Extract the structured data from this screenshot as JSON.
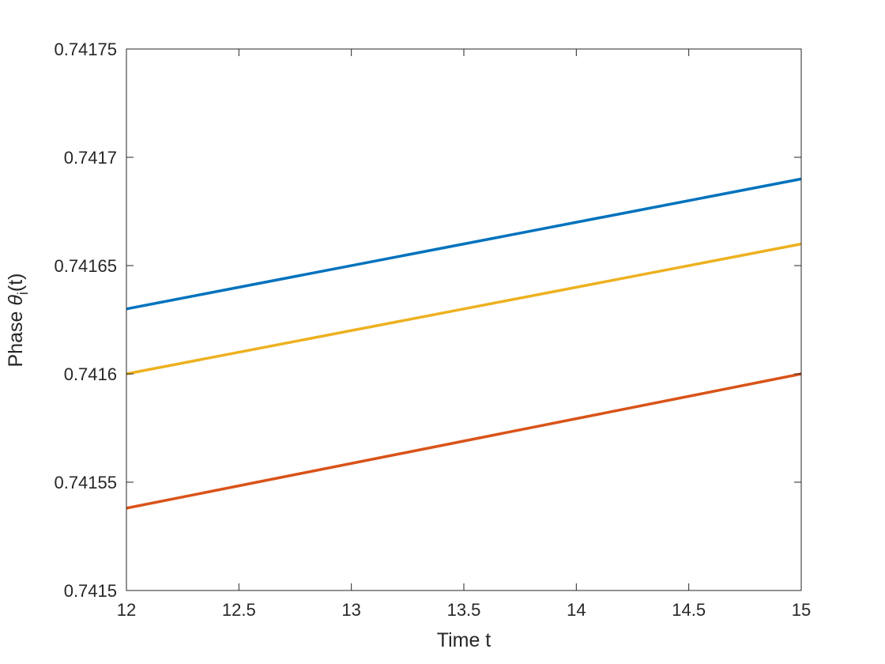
{
  "chart_data": {
    "type": "line",
    "xlabel": "Time t",
    "ylabel_prefix": "Phase ",
    "ylabel_symbol": "θ",
    "ylabel_subscript": "i",
    "ylabel_suffix": "(t)",
    "xlim": [
      12,
      15
    ],
    "ylim": [
      0.7415,
      0.74175
    ],
    "xticks": [
      12,
      12.5,
      13,
      13.5,
      14,
      14.5,
      15
    ],
    "xtick_labels": [
      "12",
      "12.5",
      "13",
      "13.5",
      "14",
      "14.5",
      "15"
    ],
    "yticks": [
      0.7415,
      0.74155,
      0.7416,
      0.74165,
      0.7417,
      0.74175
    ],
    "ytick_labels": [
      "0.7415",
      "0.74155",
      "0.7416",
      "0.74165",
      "0.7417",
      "0.74175"
    ],
    "grid": false,
    "series": [
      {
        "color": "#0072BD",
        "x": [
          12,
          15
        ],
        "y": [
          0.74163,
          0.74169
        ]
      },
      {
        "color": "#D95319",
        "x": [
          12,
          15
        ],
        "y": [
          0.741538,
          0.7416
        ]
      },
      {
        "color": "#EDB120",
        "x": [
          12,
          15
        ],
        "y": [
          0.7416,
          0.74166
        ]
      }
    ]
  }
}
